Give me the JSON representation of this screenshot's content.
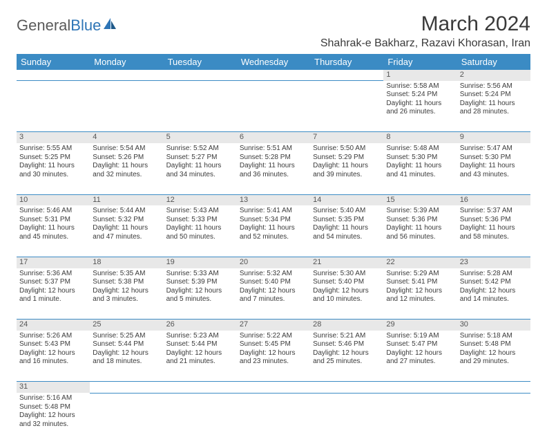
{
  "logo": {
    "text1": "General",
    "text2": "Blue"
  },
  "title": "March 2024",
  "location": "Shahrak-e Bakharz, Razavi Khorasan, Iran",
  "colors": {
    "header_bg": "#3b8bc4",
    "header_fg": "#ffffff",
    "daynum_bg": "#e8e8e8",
    "border": "#3b8bc4",
    "text": "#3a3a3a",
    "logo_gray": "#5a5a5a",
    "logo_blue": "#2e75b6"
  },
  "weekdays": [
    "Sunday",
    "Monday",
    "Tuesday",
    "Wednesday",
    "Thursday",
    "Friday",
    "Saturday"
  ],
  "weeks": [
    [
      null,
      null,
      null,
      null,
      null,
      {
        "d": "1",
        "sr": "5:58 AM",
        "ss": "5:24 PM",
        "dl": "11 hours and 26 minutes."
      },
      {
        "d": "2",
        "sr": "5:56 AM",
        "ss": "5:24 PM",
        "dl": "11 hours and 28 minutes."
      }
    ],
    [
      {
        "d": "3",
        "sr": "5:55 AM",
        "ss": "5:25 PM",
        "dl": "11 hours and 30 minutes."
      },
      {
        "d": "4",
        "sr": "5:54 AM",
        "ss": "5:26 PM",
        "dl": "11 hours and 32 minutes."
      },
      {
        "d": "5",
        "sr": "5:52 AM",
        "ss": "5:27 PM",
        "dl": "11 hours and 34 minutes."
      },
      {
        "d": "6",
        "sr": "5:51 AM",
        "ss": "5:28 PM",
        "dl": "11 hours and 36 minutes."
      },
      {
        "d": "7",
        "sr": "5:50 AM",
        "ss": "5:29 PM",
        "dl": "11 hours and 39 minutes."
      },
      {
        "d": "8",
        "sr": "5:48 AM",
        "ss": "5:30 PM",
        "dl": "11 hours and 41 minutes."
      },
      {
        "d": "9",
        "sr": "5:47 AM",
        "ss": "5:30 PM",
        "dl": "11 hours and 43 minutes."
      }
    ],
    [
      {
        "d": "10",
        "sr": "5:46 AM",
        "ss": "5:31 PM",
        "dl": "11 hours and 45 minutes."
      },
      {
        "d": "11",
        "sr": "5:44 AM",
        "ss": "5:32 PM",
        "dl": "11 hours and 47 minutes."
      },
      {
        "d": "12",
        "sr": "5:43 AM",
        "ss": "5:33 PM",
        "dl": "11 hours and 50 minutes."
      },
      {
        "d": "13",
        "sr": "5:41 AM",
        "ss": "5:34 PM",
        "dl": "11 hours and 52 minutes."
      },
      {
        "d": "14",
        "sr": "5:40 AM",
        "ss": "5:35 PM",
        "dl": "11 hours and 54 minutes."
      },
      {
        "d": "15",
        "sr": "5:39 AM",
        "ss": "5:36 PM",
        "dl": "11 hours and 56 minutes."
      },
      {
        "d": "16",
        "sr": "5:37 AM",
        "ss": "5:36 PM",
        "dl": "11 hours and 58 minutes."
      }
    ],
    [
      {
        "d": "17",
        "sr": "5:36 AM",
        "ss": "5:37 PM",
        "dl": "12 hours and 1 minute."
      },
      {
        "d": "18",
        "sr": "5:35 AM",
        "ss": "5:38 PM",
        "dl": "12 hours and 3 minutes."
      },
      {
        "d": "19",
        "sr": "5:33 AM",
        "ss": "5:39 PM",
        "dl": "12 hours and 5 minutes."
      },
      {
        "d": "20",
        "sr": "5:32 AM",
        "ss": "5:40 PM",
        "dl": "12 hours and 7 minutes."
      },
      {
        "d": "21",
        "sr": "5:30 AM",
        "ss": "5:40 PM",
        "dl": "12 hours and 10 minutes."
      },
      {
        "d": "22",
        "sr": "5:29 AM",
        "ss": "5:41 PM",
        "dl": "12 hours and 12 minutes."
      },
      {
        "d": "23",
        "sr": "5:28 AM",
        "ss": "5:42 PM",
        "dl": "12 hours and 14 minutes."
      }
    ],
    [
      {
        "d": "24",
        "sr": "5:26 AM",
        "ss": "5:43 PM",
        "dl": "12 hours and 16 minutes."
      },
      {
        "d": "25",
        "sr": "5:25 AM",
        "ss": "5:44 PM",
        "dl": "12 hours and 18 minutes."
      },
      {
        "d": "26",
        "sr": "5:23 AM",
        "ss": "5:44 PM",
        "dl": "12 hours and 21 minutes."
      },
      {
        "d": "27",
        "sr": "5:22 AM",
        "ss": "5:45 PM",
        "dl": "12 hours and 23 minutes."
      },
      {
        "d": "28",
        "sr": "5:21 AM",
        "ss": "5:46 PM",
        "dl": "12 hours and 25 minutes."
      },
      {
        "d": "29",
        "sr": "5:19 AM",
        "ss": "5:47 PM",
        "dl": "12 hours and 27 minutes."
      },
      {
        "d": "30",
        "sr": "5:18 AM",
        "ss": "5:48 PM",
        "dl": "12 hours and 29 minutes."
      }
    ],
    [
      {
        "d": "31",
        "sr": "5:16 AM",
        "ss": "5:48 PM",
        "dl": "12 hours and 32 minutes."
      },
      null,
      null,
      null,
      null,
      null,
      null
    ]
  ],
  "labels": {
    "sunrise": "Sunrise:",
    "sunset": "Sunset:",
    "daylight": "Daylight:"
  }
}
